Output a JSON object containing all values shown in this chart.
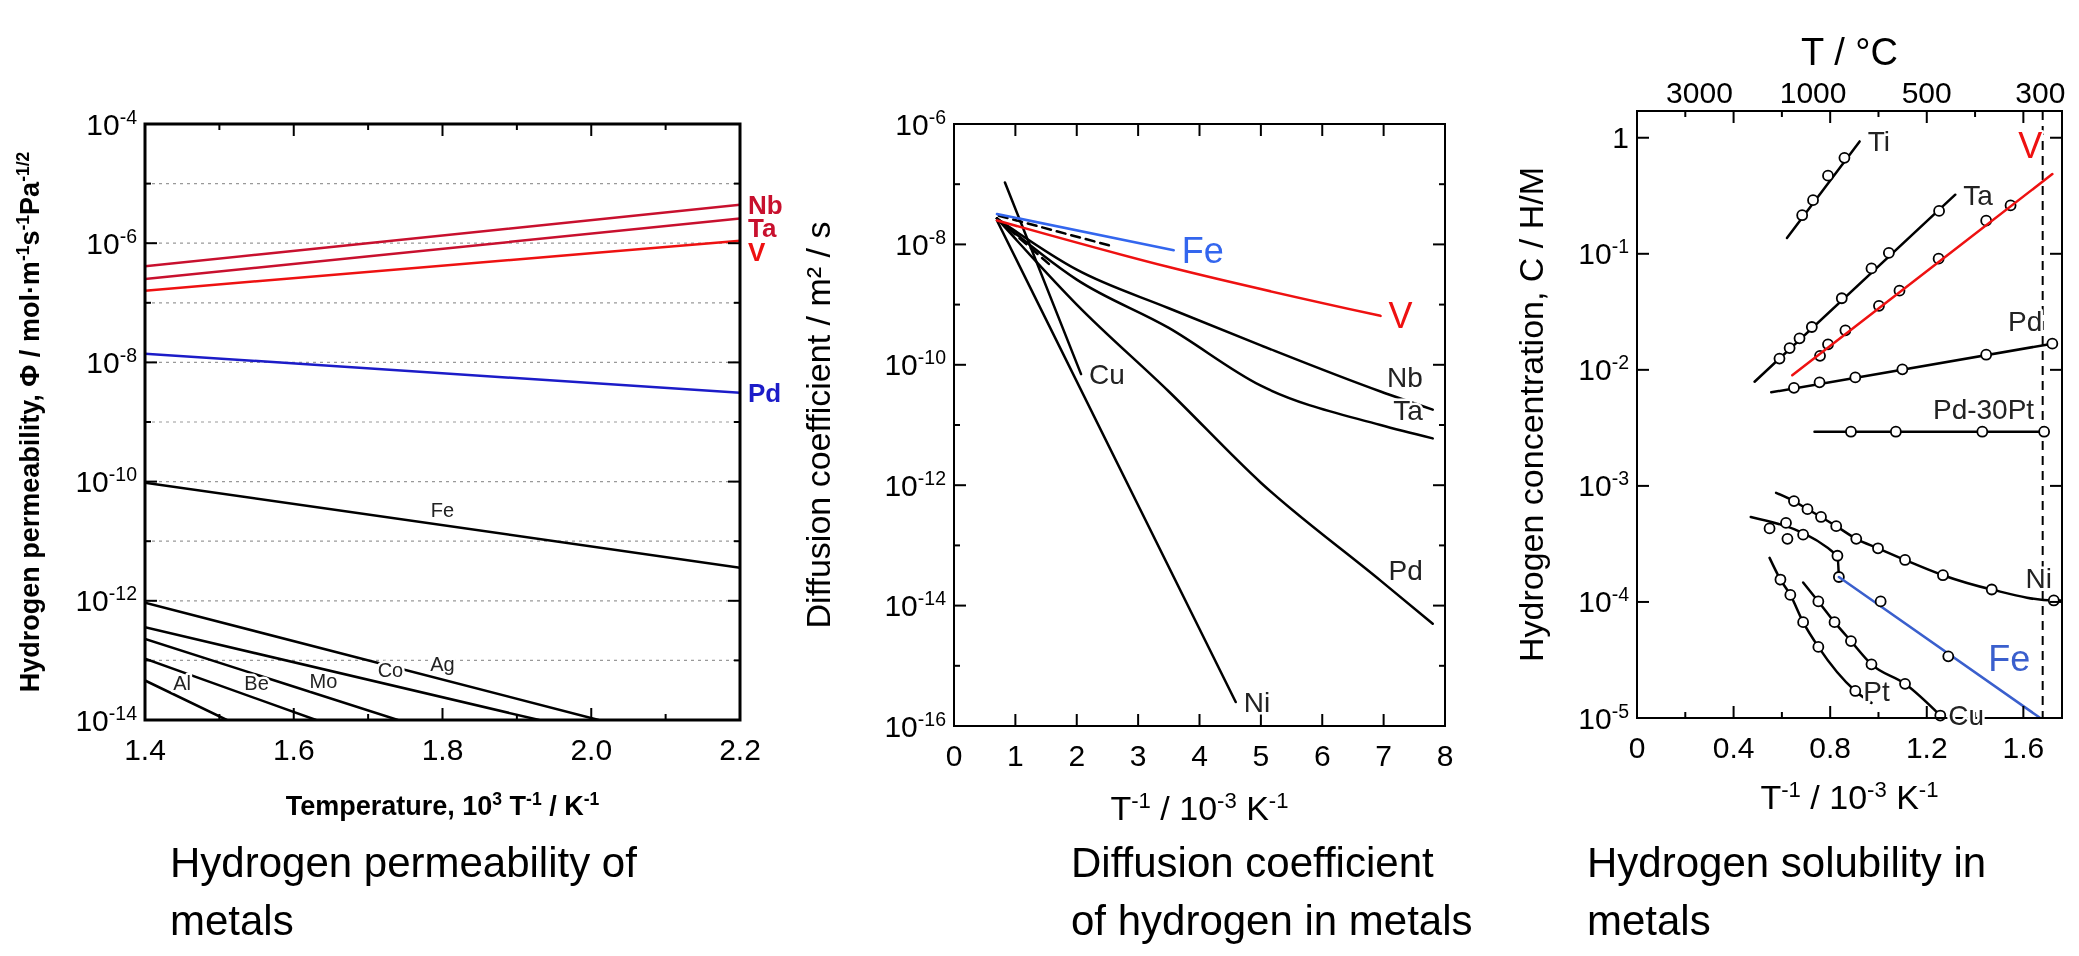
{
  "chart_data": [
    {
      "type": "line",
      "title": "Hydrogen permeability of metals",
      "xlabel": "Temperature, 10$^{3}$ T$^{-1}$ / K$^{-1}$",
      "ylabel": "Hydrogen permeability, Φ / mol·m$^{-1}$s$^{-1}$Pa$^{-1/2}$",
      "log": "y",
      "grid": "y",
      "xlim": [
        1.4,
        2.2
      ],
      "ylim": [
        1e-14,
        0.0001
      ],
      "xticks": [
        1.4,
        {
          "value": 1.5,
          "label": null
        },
        1.6,
        {
          "value": 1.7,
          "label": null
        },
        1.8,
        {
          "value": 1.9,
          "label": null
        },
        {
          "value": 2,
          "label": "2.0"
        },
        {
          "value": 2.1,
          "label": null
        },
        2.2
      ],
      "yticks": [
        {
          "value": 0.0001,
          "label": "10$^{-4}$"
        },
        {
          "value": 1e-05,
          "label": null
        },
        {
          "value": 1e-06,
          "label": "10$^{-6}$"
        },
        {
          "value": 1e-07,
          "label": null
        },
        {
          "value": 1e-08,
          "label": "10$^{-8}$"
        },
        {
          "value": 1e-09,
          "label": null
        },
        {
          "value": 1e-10,
          "label": "10$^{-10}$"
        },
        {
          "value": 1e-11,
          "label": null
        },
        {
          "value": 1e-12,
          "label": "10$^{-12}$"
        },
        {
          "value": 1e-13,
          "label": null
        },
        {
          "value": 1e-14,
          "label": "10$^{-14}$"
        }
      ],
      "series": [
        {
          "name": "Nb",
          "color": "#c8102e",
          "x": [
            1.4,
            2.2
          ],
          "values": [
            4.1e-07,
            4.4e-06
          ]
        },
        {
          "name": "Ta",
          "color": "#c8102e",
          "x": [
            1.4,
            2.2
          ],
          "values": [
            2.5e-07,
            2.6e-06
          ]
        },
        {
          "name": "V",
          "color": "#ee1111",
          "x": [
            1.4,
            2.2
          ],
          "values": [
            1.6e-07,
            1.1e-06
          ]
        },
        {
          "name": "Pd",
          "color": "#1c1cc8",
          "x": [
            1.4,
            2.2
          ],
          "values": [
            1.4e-08,
            3.1e-09
          ]
        },
        {
          "color": "#000000",
          "x": [
            1.4,
            2.2
          ],
          "values": [
            9.6e-11,
            3.6e-12
          ]
        },
        {
          "color": "#000000",
          "x": [
            1.4,
            2.01
          ],
          "values": [
            9.3e-13,
            1e-14
          ]
        },
        {
          "color": "#000000",
          "x": [
            1.4,
            1.93
          ],
          "values": [
            3.6e-13,
            1e-14
          ]
        },
        {
          "color": "#000000",
          "x": [
            1.4,
            1.74
          ],
          "values": [
            2.3e-13,
            1e-14
          ]
        },
        {
          "color": "#000000",
          "x": [
            1.4,
            1.63
          ],
          "values": [
            1.07e-13,
            1e-14
          ]
        },
        {
          "color": "#000000",
          "x": [
            1.4,
            1.51
          ],
          "values": [
            4.6e-14,
            1e-14
          ]
        }
      ],
      "annotations": [
        {
          "text": "Fe",
          "x": 1.8,
          "y": 1.86e-11
        },
        {
          "text": "Ag",
          "x": 1.8,
          "y": 4.8e-14
        },
        {
          "text": "Co",
          "x": 1.73,
          "y": 3.9e-14
        },
        {
          "text": "Mo",
          "x": 1.64,
          "y": 2.5e-14
        },
        {
          "text": "Be",
          "x": 1.55,
          "y": 2.3e-14
        },
        {
          "text": "Al",
          "x": 1.45,
          "y": 2.3e-14
        }
      ]
    },
    {
      "type": "line",
      "title": "Diffusion coefficient of hydrogen in metals",
      "xlabel": "T$^{-1}$ / 10$^{-3}$ K$^{-1}$",
      "ylabel": "Diffusion coefficient  /  m² / s",
      "log": "y",
      "xlim": [
        0,
        8
      ],
      "ylim": [
        1e-16,
        1e-06
      ],
      "xticks": [
        0,
        1,
        2,
        3,
        4,
        5,
        6,
        7,
        8
      ],
      "yticks": [
        {
          "value": 1e-06,
          "label": "10$^{-6}$"
        },
        {
          "value": 1e-07,
          "label": null
        },
        {
          "value": 1e-08,
          "label": "10$^{-8}$"
        },
        {
          "value": 1e-09,
          "label": null
        },
        {
          "value": 1e-10,
          "label": "10$^{-10}$"
        },
        {
          "value": 1e-11,
          "label": null
        },
        {
          "value": 1e-12,
          "label": "10$^{-12}$"
        },
        {
          "value": 1e-13,
          "label": null
        },
        {
          "value": 1e-14,
          "label": "10$^{-14}$"
        },
        {
          "value": 1e-15,
          "label": null
        },
        {
          "value": 1e-16,
          "label": "10$^{-16}$"
        }
      ],
      "series": [
        {
          "color": "#000000",
          "x": [
            0.7,
            2,
            3.5,
            5,
            6.95,
            7.8
          ],
          "values": [
            2.7e-08,
            3.8e-09,
            8.7e-10,
            2.1e-10,
            3.6e-11,
            1.8e-11
          ]
        },
        {
          "color": "#000000",
          "x": [
            0.7,
            2,
            3.5,
            5,
            6.95,
            7.8
          ],
          "values": [
            2.7e-08,
            2.6e-09,
            4.1e-10,
            4.5e-11,
            1e-11,
            6e-12
          ]
        },
        {
          "color": "#000000",
          "x": [
            0.7,
            2,
            3.5,
            5,
            6.95,
            7.8
          ],
          "values": [
            2.7e-08,
            1e-09,
            3.6e-11,
            1.1e-12,
            2.6e-14,
            5e-15
          ]
        },
        {
          "color": "#000000",
          "x": [
            0.7,
            4.59
          ],
          "values": [
            2.5e-08,
            2.5e-16
          ]
        },
        {
          "color": "#000000",
          "x": [
            0.83,
            2.07
          ],
          "values": [
            1.07e-07,
            7e-11
          ]
        },
        {
          "color": "#000000",
          "line_style": "dashed",
          "x": [
            0.73,
            2.55
          ],
          "values": [
            3e-08,
            9.5e-09
          ]
        },
        {
          "color": "#000000",
          "line_style": "dashed",
          "x": [
            0.7,
            1.56
          ],
          "values": [
            2.7e-08,
            4.6e-09
          ]
        },
        {
          "name": "Fe",
          "color": "#3366ee",
          "x": [
            0.7,
            3.58
          ],
          "values": [
            3.2e-08,
            8e-09
          ]
        },
        {
          "name": "V",
          "color": "#ee1111",
          "x": [
            0.7,
            3.5,
            6.95
          ],
          "values": [
            2.5e-08,
            4.2e-09,
            6.5e-10
          ]
        }
      ],
      "annotations": [
        {
          "text": "Cu",
          "x": 2.07,
          "y": 7e-11
        },
        {
          "text": "Nb",
          "x": 7.8,
          "y": 1.8e-11
        },
        {
          "text": "Ta",
          "x": 7.8,
          "y": 6e-12
        },
        {
          "text": "Pd",
          "x": 7.8,
          "y": 5e-15
        },
        {
          "text": "Ni",
          "x": 4.59,
          "y": 2.5e-16
        }
      ]
    },
    {
      "type": "line",
      "title": "Hydrogen solubility in metals",
      "xlabel": "T$^{-1}$ / 10$^{-3}$ K$^{-1}$",
      "ylabel": "Hydrogen  concentration,  C  /  H/M",
      "x2label": "T  / °C",
      "log": "y",
      "xlim": [
        0,
        1.76
      ],
      "ylim": [
        1e-05,
        1.7
      ],
      "xticks": [
        0,
        {
          "value": 0.2,
          "label": null
        },
        0.4,
        {
          "value": 0.6,
          "label": null
        },
        0.8,
        {
          "value": 1,
          "label": null
        },
        1.2,
        {
          "value": 1.4,
          "label": null
        },
        1.6
      ],
      "yticks": [
        1,
        {
          "value": 0.1,
          "label": "10$^{-1}$"
        },
        {
          "value": 0.01,
          "label": "10$^{-2}$"
        },
        {
          "value": 0.001,
          "label": "10$^{-3}$"
        },
        {
          "value": 0.0001,
          "label": "10$^{-4}$"
        },
        {
          "value": 1e-05,
          "label": "10$^{-5}$"
        }
      ],
      "ref_lines": [
        {
          "axis": "x",
          "value": 1.68,
          "line_style": "dashed"
        }
      ],
      "series": [
        {
          "color": "#000000",
          "x": [
            0.621,
            0.922
          ],
          "values": [
            0.137,
            0.93
          ]
        },
        {
          "type": "scatter",
          "marker": "circle",
          "color": "#000000",
          "x": [
            0.684,
            0.729,
            0.791,
            0.859
          ],
          "values": [
            0.215,
            0.29,
            0.471,
            0.671
          ]
        },
        {
          "color": "#000000",
          "x": [
            0.487,
            1.318
          ],
          "values": [
            0.0079,
            0.323
          ]
        },
        {
          "type": "scatter",
          "marker": "circle",
          "color": "#000000",
          "x": [
            0.59,
            0.632,
            0.673,
            0.724,
            0.848,
            0.971,
            1.043,
            1.251
          ],
          "values": [
            0.0125,
            0.0154,
            0.0187,
            0.0234,
            0.0414,
            0.0748,
            0.102,
            0.234
          ]
        },
        {
          "type": "scatter",
          "marker": "circle",
          "color": "#000000",
          "x": [
            0.758,
            0.791,
            0.863,
            1.002,
            1.087,
            1.249,
            1.446,
            1.547
          ],
          "values": [
            0.0132,
            0.0166,
            0.0219,
            0.0356,
            0.0481,
            0.0908,
            0.193,
            0.261
          ]
        },
        {
          "name": "V",
          "color": "#ee1111",
          "x": [
            0.643,
            1.72
          ],
          "values": [
            0.009,
            0.486
          ]
        },
        {
          "color": "#000000",
          "x": [
            0.556,
            1.72
          ],
          "values": [
            0.0064,
            0.0168
          ]
        },
        {
          "type": "scatter",
          "marker": "circle",
          "color": "#000000",
          "x": [
            0.65,
            0.756,
            0.904,
            1.099,
            1.446,
            1.72
          ],
          "values": [
            0.007,
            0.0078,
            0.0086,
            0.0101,
            0.0135,
            0.0168
          ]
        },
        {
          "color": "#000000",
          "x": [
            0.735,
            1.686
          ],
          "values": [
            0.00293,
            0.00293
          ]
        },
        {
          "type": "scatter",
          "marker": "circle",
          "color": "#000000",
          "x": [
            0.886,
            1.072,
            1.43,
            1.686
          ],
          "values": [
            0.00293,
            0.00293,
            0.00293,
            0.00293
          ]
        },
        {
          "color": "#000000",
          "x": [
            0.576,
            0.65,
            0.706,
            0.762,
            0.825,
            0.908,
            0.998,
            1.11,
            1.267,
            1.469,
            1.726,
            1.76
          ],
          "values": [
            0.00087,
            0.00074,
            0.00063,
            0.00054,
            0.00045,
            0.00035,
            0.00029,
            0.00023,
            0.00017,
            0.000128,
            0.000103,
            0.000103
          ]
        },
        {
          "type": "scatter",
          "marker": "circle",
          "color": "#000000",
          "x": [
            0.65,
            0.706,
            0.762,
            0.825,
            0.908,
            0.998,
            1.11,
            1.267,
            1.469,
            1.726
          ],
          "values": [
            0.00074,
            0.00063,
            0.00054,
            0.00045,
            0.00035,
            0.00029,
            0.00023,
            0.00017,
            0.000128,
            0.000103
          ]
        },
        {
          "color": "#000000",
          "x": [
            0.471,
            0.83,
            0.836
          ],
          "values": [
            0.00054,
            0.00025,
            0.000164
          ]
        },
        {
          "type": "scatter",
          "marker": "circle",
          "color": "#000000",
          "x": [
            0.549,
            0.617,
            0.623,
            0.688,
            0.83,
            0.836
          ],
          "values": [
            0.00043,
            0.00048,
            0.00035,
            0.00038,
            0.00025,
            0.000164
          ]
        },
        {
          "name": "Fe",
          "color": "#3a5fcd",
          "x": [
            0.836,
            1.67
          ],
          "values": [
            0.000164,
            1e-05
          ]
        },
        {
          "type": "scatter",
          "marker": "circle",
          "color": "#000000",
          "x": [
            1.009,
            1.289
          ],
          "values": [
            0.000101,
            3.4e-05
          ]
        },
        {
          "color": "#000000",
          "x": [
            0.688,
            0.751,
            0.818,
            0.886,
            0.971,
            1.11,
            1.256
          ],
          "values": [
            0.000147,
            0.000101,
            6.7e-05,
            4.6e-05,
            2.9e-05,
            1.97e-05,
            1.05e-05
          ]
        },
        {
          "type": "scatter",
          "marker": "circle",
          "color": "#000000",
          "x": [
            0.751,
            0.818,
            0.886,
            0.971,
            1.11,
            1.256
          ],
          "values": [
            0.000101,
            6.7e-05,
            4.6e-05,
            2.9e-05,
            1.97e-05,
            1.05e-05
          ]
        },
        {
          "color": "#000000",
          "x": [
            0.549,
            0.594,
            0.635,
            0.688,
            0.751,
            0.904,
            0.971
          ],
          "values": [
            0.00024,
            0.000156,
            0.000115,
            6.7e-05,
            4.1e-05,
            1.71e-05,
            1.35e-05
          ]
        },
        {
          "type": "scatter",
          "marker": "circle",
          "color": "#000000",
          "x": [
            0.594,
            0.635,
            0.688,
            0.751,
            0.904
          ],
          "values": [
            0.000156,
            0.000115,
            6.7e-05,
            4.1e-05,
            1.71e-05
          ]
        }
      ],
      "annotations": [
        {
          "text": "Ti",
          "x": 0.922,
          "y": 0.93
        },
        {
          "text": "Ta",
          "x": 1.318,
          "y": 0.323
        },
        {
          "text": "Pd",
          "x": 1.72,
          "y": 0.0168
        },
        {
          "text": "Pd-30Pt",
          "x": 1.686,
          "y": 0.00293
        },
        {
          "text": "Ni",
          "x": 1.76,
          "y": 0.000103
        },
        {
          "text": "Cu",
          "x": 1.256,
          "y": 1.05e-05
        },
        {
          "text": "Pt",
          "x": 0.904,
          "y": 1.71e-05
        },
        "3000",
        "1000",
        "500",
        "300"
      ]
    }
  ]
}
